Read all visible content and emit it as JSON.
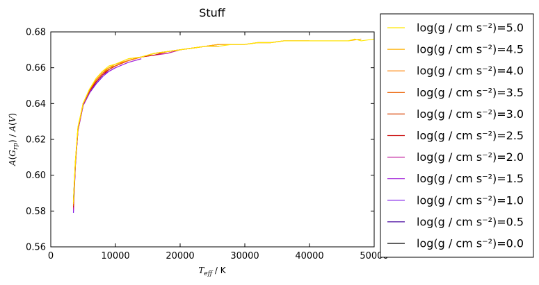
{
  "chart_data": {
    "type": "line",
    "title": "Stuff",
    "xlabel": "T_eff / K",
    "ylabel": "A(G_rp) / A(V)",
    "xlim": [
      0,
      50000
    ],
    "ylim": [
      0.56,
      0.68
    ],
    "xticks": [
      0,
      10000,
      20000,
      30000,
      40000,
      50000
    ],
    "xtick_labels": [
      "0",
      "10000",
      "20000",
      "30000",
      "40000",
      "50000"
    ],
    "yticks": [
      0.56,
      0.58,
      0.6,
      0.62,
      0.64,
      0.66,
      0.68
    ],
    "ytick_labels": [
      "0.56",
      "0.58",
      "0.60",
      "0.62",
      "0.64",
      "0.66",
      "0.68"
    ],
    "grid": false,
    "legend_position": "right, outside plot area",
    "series": [
      {
        "name": "log(g / cm s⁻²)=5.0",
        "color": "#ffe800",
        "x": [
          3500,
          3800,
          4200,
          5000,
          6000,
          7000,
          8000,
          9000,
          10000,
          12000,
          14000,
          16000,
          18000,
          20000,
          22000,
          24000,
          26000,
          28000,
          30000,
          32000,
          34000,
          36000,
          38000,
          40000,
          42000,
          44000,
          46000,
          47000,
          48000,
          50000
        ],
        "y": [
          0.585,
          0.608,
          0.627,
          0.64,
          0.648,
          0.654,
          0.658,
          0.661,
          0.662,
          0.665,
          0.666,
          0.668,
          0.669,
          0.67,
          0.671,
          0.672,
          0.672,
          0.673,
          0.673,
          0.674,
          0.674,
          0.675,
          0.675,
          0.675,
          0.675,
          0.675,
          0.675,
          0.676,
          0.675,
          0.676
        ]
      },
      {
        "name": "log(g / cm s⁻²)=4.5",
        "color": "#ffb000",
        "x": [
          3500,
          3800,
          4200,
          5000,
          6000,
          7000,
          8000,
          9000,
          10000,
          12000,
          14000,
          16000,
          18000,
          20000,
          22000,
          24000,
          26000,
          28000,
          30000,
          32000,
          34000,
          36000,
          38000,
          40000,
          42000,
          44000,
          46000,
          48000
        ],
        "y": [
          0.584,
          0.607,
          0.626,
          0.64,
          0.648,
          0.654,
          0.658,
          0.66,
          0.662,
          0.665,
          0.666,
          0.668,
          0.669,
          0.67,
          0.671,
          0.672,
          0.673,
          0.673,
          0.673,
          0.674,
          0.674,
          0.675,
          0.675,
          0.675,
          0.675,
          0.675,
          0.675,
          0.676
        ]
      },
      {
        "name": "log(g / cm s⁻²)=4.0",
        "color": "#ff8000",
        "x": [
          3500,
          3800,
          4200,
          5000,
          6000,
          7000,
          8000,
          9000,
          10000,
          12000,
          14000,
          16000,
          18000,
          20000,
          22000,
          24000,
          26000,
          28000,
          30000,
          32000,
          34000,
          36000,
          38000,
          40000
        ],
        "y": [
          0.584,
          0.607,
          0.626,
          0.64,
          0.648,
          0.653,
          0.657,
          0.66,
          0.662,
          0.664,
          0.666,
          0.668,
          0.669,
          0.67,
          0.671,
          0.672,
          0.673,
          0.673,
          0.673,
          0.674,
          0.674,
          0.675,
          0.675,
          0.675
        ]
      },
      {
        "name": "log(g / cm s⁻²)=3.5",
        "color": "#ec6000",
        "x": [
          3500,
          3800,
          4200,
          5000,
          6000,
          7000,
          8000,
          9000,
          10000,
          12000,
          14000,
          16000,
          18000,
          20000,
          22000,
          24000,
          26000,
          28000,
          30000,
          32000,
          34000,
          36000,
          38000,
          40000
        ],
        "y": [
          0.583,
          0.607,
          0.626,
          0.64,
          0.648,
          0.653,
          0.657,
          0.66,
          0.661,
          0.664,
          0.666,
          0.668,
          0.669,
          0.67,
          0.671,
          0.672,
          0.673,
          0.673,
          0.673,
          0.674,
          0.674,
          0.675,
          0.675,
          0.675
        ]
      },
      {
        "name": "log(g / cm s⁻²)=3.0",
        "color": "#d84000",
        "x": [
          3500,
          3800,
          4200,
          5000,
          6000,
          7000,
          8000,
          9000,
          10000,
          12000,
          14000,
          16000,
          18000,
          20000,
          22000,
          24000,
          26000,
          28000,
          30000
        ],
        "y": [
          0.583,
          0.607,
          0.626,
          0.64,
          0.647,
          0.653,
          0.657,
          0.659,
          0.661,
          0.664,
          0.666,
          0.668,
          0.669,
          0.67,
          0.671,
          0.672,
          0.673,
          0.673,
          0.673
        ]
      },
      {
        "name": "log(g / cm s⁻²)=2.5",
        "color": "#cc1010",
        "x": [
          3500,
          3800,
          4200,
          5000,
          6000,
          7000,
          8000,
          9000,
          10000,
          12000,
          14000,
          16000,
          18000,
          20000,
          22000,
          24000,
          26000
        ],
        "y": [
          0.582,
          0.606,
          0.626,
          0.64,
          0.647,
          0.652,
          0.656,
          0.659,
          0.661,
          0.664,
          0.666,
          0.667,
          0.669,
          0.67,
          0.671,
          0.672,
          0.672
        ]
      },
      {
        "name": "log(g / cm s⁻²)=2.0",
        "color": "#c01a9a",
        "x": [
          3500,
          3800,
          4200,
          5000,
          6000,
          7000,
          8000,
          9000,
          10000,
          12000,
          14000,
          16000,
          18000,
          20000
        ],
        "y": [
          0.581,
          0.606,
          0.625,
          0.639,
          0.647,
          0.652,
          0.656,
          0.659,
          0.661,
          0.664,
          0.666,
          0.667,
          0.668,
          0.67
        ]
      },
      {
        "name": "log(g / cm s⁻²)=1.5",
        "color": "#a020d8",
        "x": [
          3500,
          3800,
          4200,
          5000,
          6000,
          7000,
          8000,
          9000,
          10000,
          12000,
          14000
        ],
        "y": [
          0.58,
          0.605,
          0.625,
          0.639,
          0.646,
          0.652,
          0.656,
          0.658,
          0.66,
          0.663,
          0.665
        ]
      },
      {
        "name": "log(g / cm s⁻²)=1.0",
        "color": "#7a14e8",
        "x": [
          3500,
          3800,
          4200,
          5000,
          6000,
          7000,
          8000,
          9000,
          10000
        ],
        "y": [
          0.579,
          0.605,
          0.625,
          0.639,
          0.646,
          0.651,
          0.655,
          0.658,
          0.66
        ]
      },
      {
        "name": "log(g / cm s⁻²)=0.5",
        "color": "#4a0aa0",
        "x": [
          3500,
          3800,
          4200,
          5000,
          6000,
          7000,
          8000
        ],
        "y": [
          0.585,
          0.606,
          0.625,
          0.639,
          0.646,
          0.651,
          0.655
        ]
      },
      {
        "name": "log(g / cm s⁻²)=0.0",
        "color": "#000000",
        "x": [
          3500,
          3800,
          4200,
          5000,
          6000,
          7000
        ],
        "y": [
          0.586,
          0.607,
          0.626,
          0.639,
          0.646,
          0.651
        ]
      }
    ]
  }
}
